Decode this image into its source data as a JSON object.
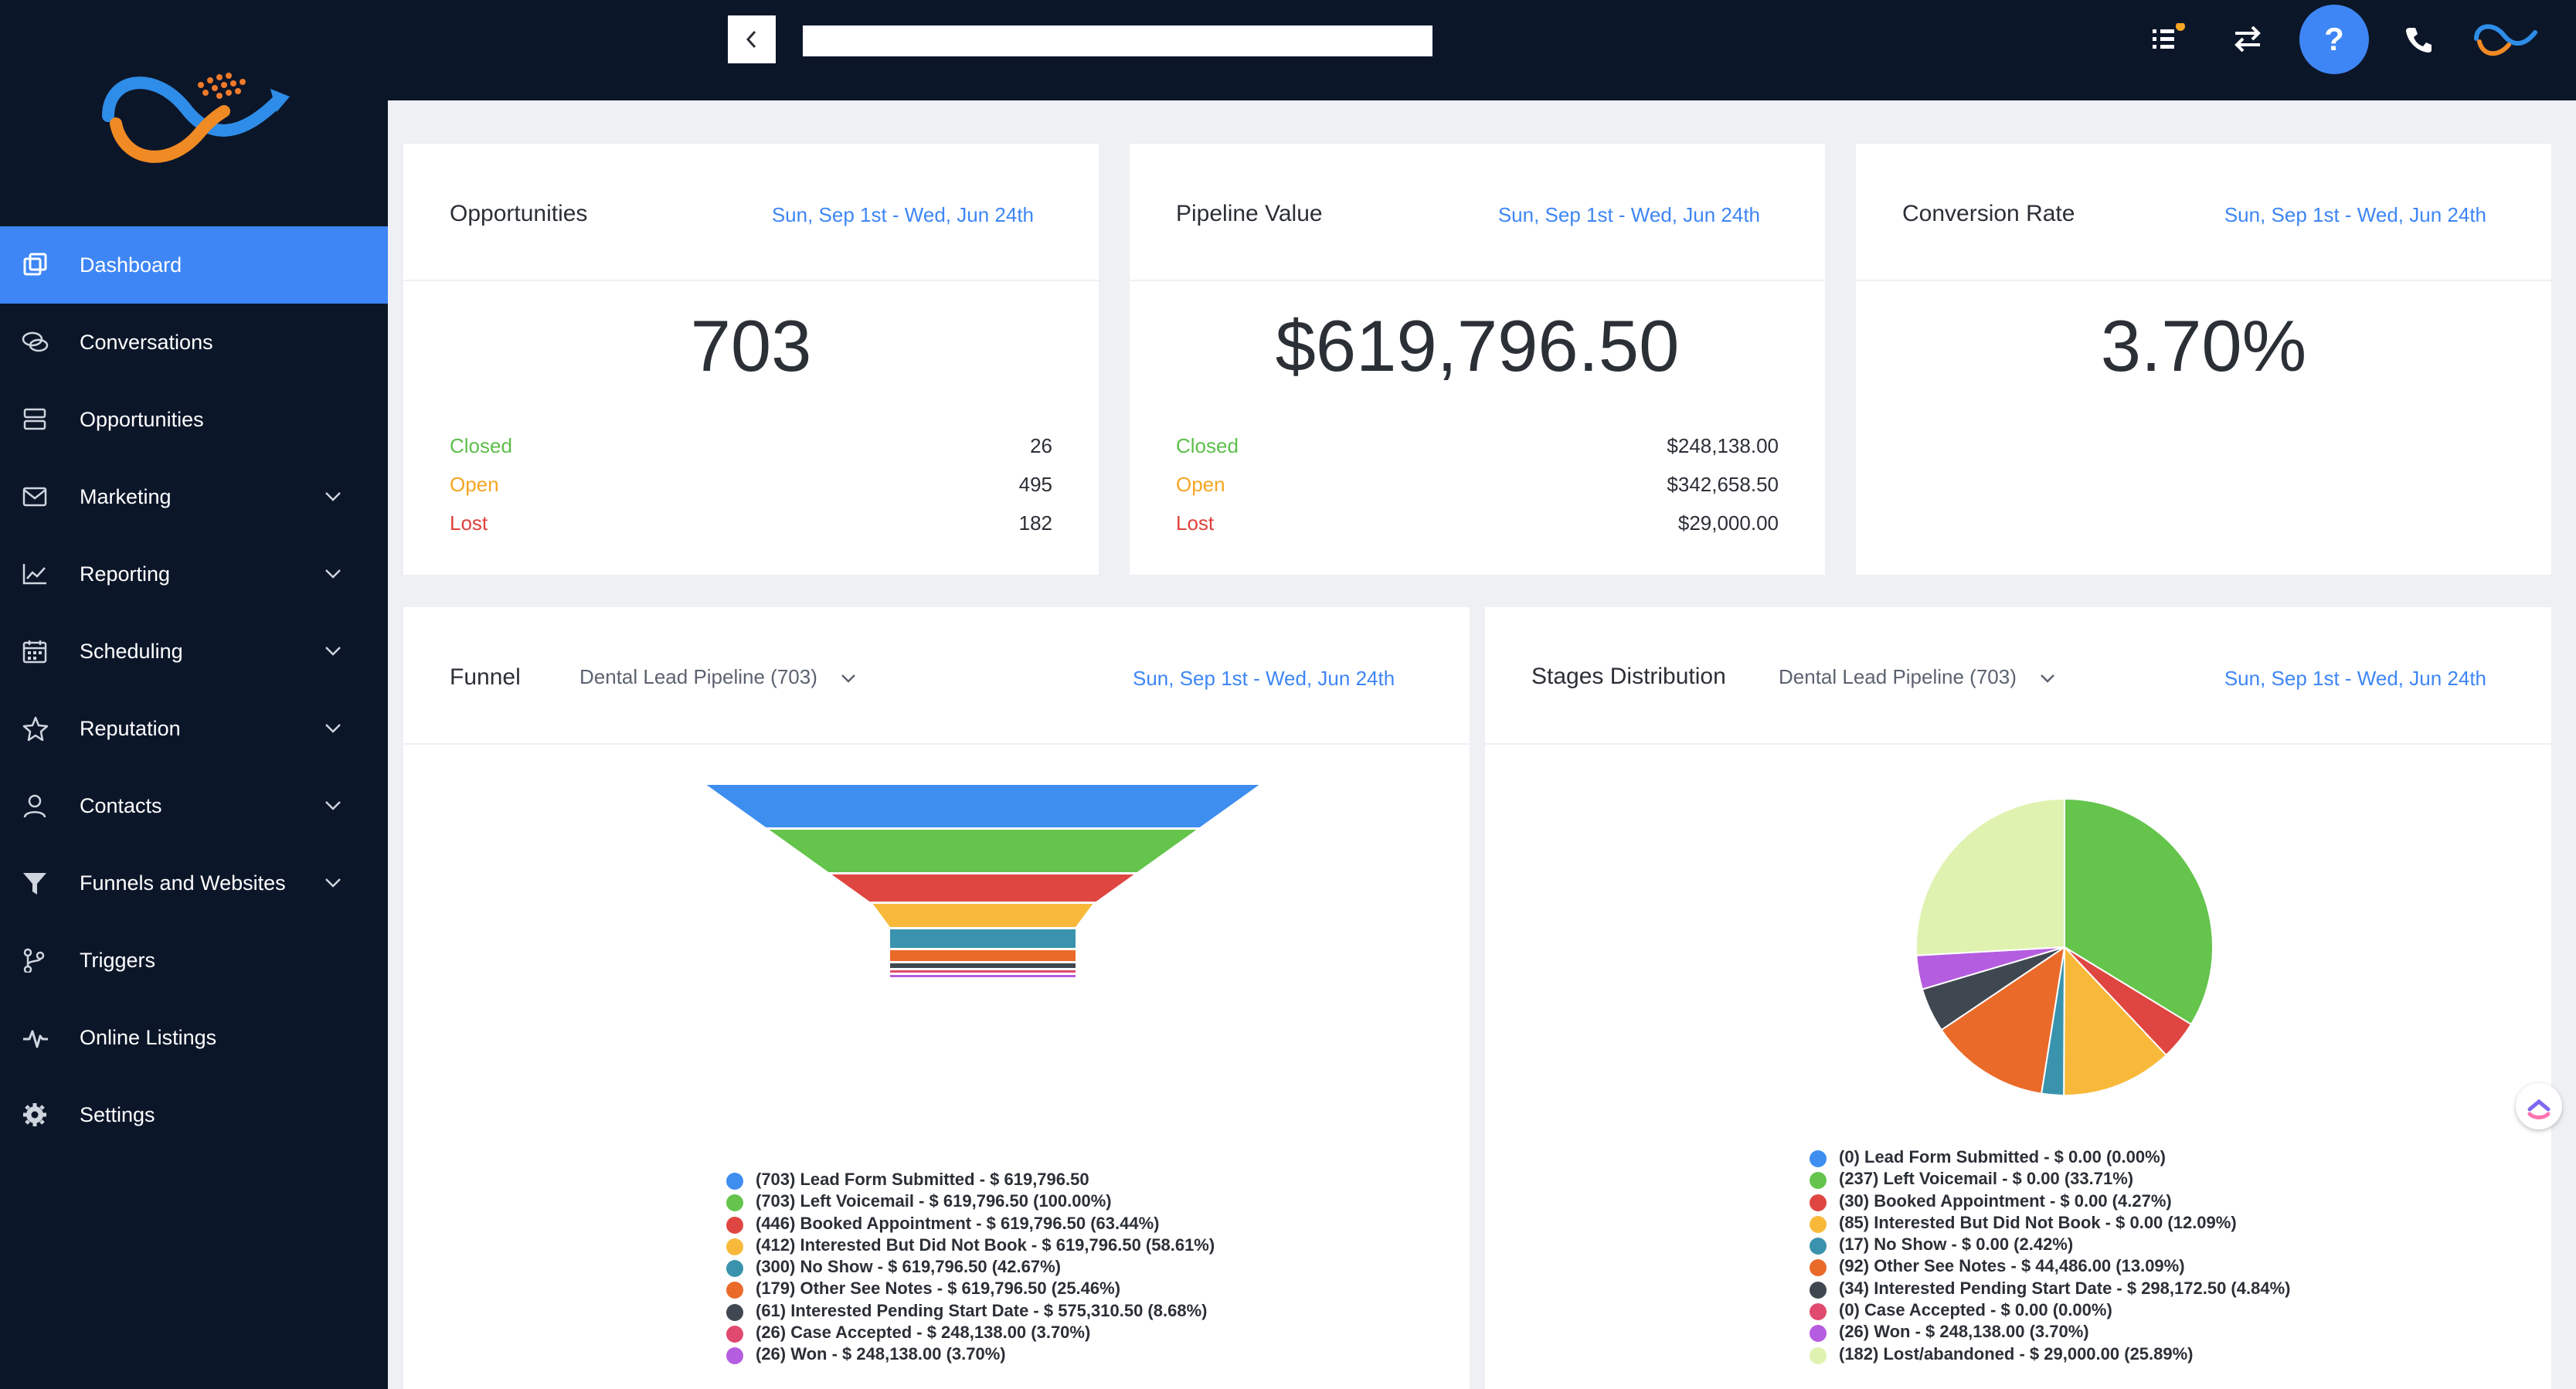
{
  "sidebar": {
    "items": [
      {
        "label": "Dashboard",
        "icon": "dashboard-icon",
        "active": true,
        "expandable": false
      },
      {
        "label": "Conversations",
        "icon": "chat-icon",
        "active": false,
        "expandable": false
      },
      {
        "label": "Opportunities",
        "icon": "stack-icon",
        "active": false,
        "expandable": false
      },
      {
        "label": "Marketing",
        "icon": "mail-icon",
        "active": false,
        "expandable": true
      },
      {
        "label": "Reporting",
        "icon": "chart-icon",
        "active": false,
        "expandable": true
      },
      {
        "label": "Scheduling",
        "icon": "calendar-icon",
        "active": false,
        "expandable": true
      },
      {
        "label": "Reputation",
        "icon": "star-icon",
        "active": false,
        "expandable": true
      },
      {
        "label": "Contacts",
        "icon": "person-icon",
        "active": false,
        "expandable": true
      },
      {
        "label": "Funnels and Websites",
        "icon": "filter-icon",
        "active": false,
        "expandable": true
      },
      {
        "label": "Triggers",
        "icon": "branch-icon",
        "active": false,
        "expandable": false
      },
      {
        "label": "Online Listings",
        "icon": "pulse-icon",
        "active": false,
        "expandable": false
      },
      {
        "label": "Settings",
        "icon": "gear-icon",
        "active": false,
        "expandable": false
      }
    ]
  },
  "topbar": {
    "icons": [
      "task-list-icon",
      "switch-icon",
      "help-icon",
      "phone-icon",
      "profile-logo-icon"
    ]
  },
  "colors": {
    "sidebar_bg": "#0c1629",
    "accent": "#3e86f5",
    "closed": "#5cbf4a",
    "open": "#f5a623",
    "lost": "#e0413c"
  },
  "cards": {
    "opportunities": {
      "title": "Opportunities",
      "date_range": "Sun, Sep 1st - Wed, Jun 24th",
      "value": "703",
      "rows": [
        {
          "label": "Closed",
          "value": "26"
        },
        {
          "label": "Open",
          "value": "495"
        },
        {
          "label": "Lost",
          "value": "182"
        }
      ]
    },
    "pipeline_value": {
      "title": "Pipeline Value",
      "date_range": "Sun, Sep 1st - Wed, Jun 24th",
      "value": "$619,796.50",
      "rows": [
        {
          "label": "Closed",
          "value": "$248,138.00"
        },
        {
          "label": "Open",
          "value": "$342,658.50"
        },
        {
          "label": "Lost",
          "value": "$29,000.00"
        }
      ]
    },
    "conversion_rate": {
      "title": "Conversion Rate",
      "date_range": "Sun, Sep 1st - Wed, Jun 24th",
      "value": "3.70%"
    }
  },
  "funnel": {
    "title": "Funnel",
    "pipeline": "Dental Lead Pipeline (703)",
    "date_range": "Sun, Sep 1st - Wed, Jun 24th"
  },
  "stages": {
    "title": "Stages Distribution",
    "pipeline": "Dental Lead Pipeline (703)",
    "date_range": "Sun, Sep 1st - Wed, Jun 24th"
  },
  "chart_data": [
    {
      "type": "funnel",
      "title": "Funnel",
      "categories": [
        "Lead Form Submitted",
        "Left Voicemail",
        "Booked Appointment",
        "Interested But Did Not Book",
        "No Show",
        "Other See Notes",
        "Interested Pending Start Date",
        "Case Accepted",
        "Won"
      ],
      "counts": [
        703,
        703,
        446,
        412,
        300,
        179,
        61,
        26,
        26
      ],
      "values": [
        619796.5,
        619796.5,
        619796.5,
        619796.5,
        619796.5,
        619796.5,
        575310.5,
        248138.0,
        248138.0
      ],
      "percents": [
        null,
        100.0,
        63.44,
        58.61,
        42.67,
        25.46,
        8.68,
        3.7,
        3.7
      ],
      "colors": [
        "#3e8ef0",
        "#64c44c",
        "#df4641",
        "#f8b93b",
        "#3a93ad",
        "#ea6a2a",
        "#3f4750",
        "#e04a6e",
        "#b55de0"
      ],
      "legend": [
        "(703) Lead Form Submitted - $ 619,796.50",
        "(703) Left Voicemail - $ 619,796.50 (100.00%)",
        "(446) Booked Appointment - $ 619,796.50 (63.44%)",
        "(412) Interested But Did Not Book - $ 619,796.50 (58.61%)",
        "(300) No Show - $ 619,796.50 (42.67%)",
        "(179) Other See Notes - $ 619,796.50 (25.46%)",
        "(61) Interested Pending Start Date - $ 575,310.50 (8.68%)",
        "(26) Case Accepted - $ 248,138.00 (3.70%)",
        "(26) Won - $ 248,138.00 (3.70%)"
      ]
    },
    {
      "type": "pie",
      "title": "Stages Distribution",
      "categories": [
        "Lead Form Submitted",
        "Left Voicemail",
        "Booked Appointment",
        "Interested But Did Not Book",
        "No Show",
        "Other See Notes",
        "Interested Pending Start Date",
        "Case Accepted",
        "Won",
        "Lost/abandoned"
      ],
      "counts": [
        0,
        237,
        30,
        85,
        17,
        92,
        34,
        0,
        26,
        182
      ],
      "values": [
        0.0,
        0.0,
        0.0,
        0.0,
        0.0,
        44486.0,
        298172.5,
        0.0,
        248138.0,
        29000.0
      ],
      "percents": [
        0.0,
        33.71,
        4.27,
        12.09,
        2.42,
        13.09,
        4.84,
        0.0,
        3.7,
        25.89
      ],
      "colors": [
        "#3e8ef0",
        "#64c44c",
        "#df4641",
        "#f8b93b",
        "#3a93ad",
        "#ea6a2a",
        "#3f4750",
        "#e04a6e",
        "#b55de0",
        "#dff2b0"
      ],
      "legend": [
        "(0) Lead Form Submitted - $ 0.00 (0.00%)",
        "(237) Left Voicemail - $ 0.00 (33.71%)",
        "(30) Booked Appointment - $ 0.00 (4.27%)",
        "(85) Interested But Did Not Book - $ 0.00 (12.09%)",
        "(17) No Show - $ 0.00 (2.42%)",
        "(92) Other See Notes - $ 44,486.00 (13.09%)",
        "(34) Interested Pending Start Date - $ 298,172.50 (4.84%)",
        "(0) Case Accepted - $ 0.00 (0.00%)",
        "(26) Won - $ 248,138.00 (3.70%)",
        "(182) Lost/abandoned - $ 29,000.00 (25.89%)"
      ]
    }
  ]
}
